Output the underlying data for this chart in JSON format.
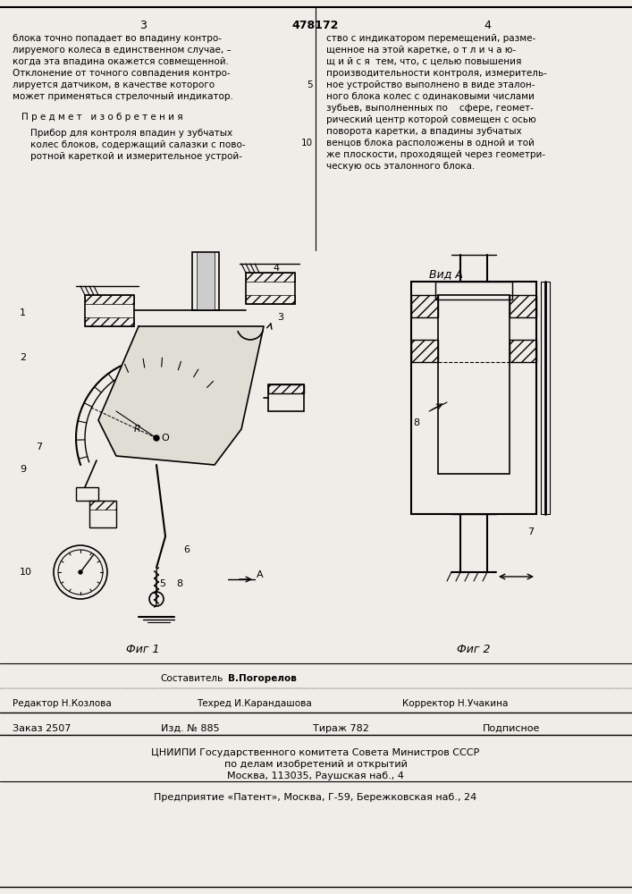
{
  "bg_color": "#f5f5f0",
  "page_color": "#f0ede8",
  "title_number": "478172",
  "page_left": "3",
  "page_right": "4",
  "fig1_label": "Фиг 1",
  "fig2_label": "Фиг 2",
  "vida_label": "Вид A",
  "text_col1_lines": [
    "блока точно попадает во впадину контро-",
    "лируемого колеса в единственном случае, –",
    "когда эта впадина окажется совмещенной.",
    "Отклонение от точного совпадения контро-",
    "лируется датчиком, в качестве которого",
    "может применяться стрелочный индикатор."
  ],
  "predmet_label": "П р е д м е т   и з о б р е т е н и я",
  "predmet_lines": [
    "Прибор для контроля впадин у зубчатых",
    "колес блоков, содержащий салазки с пово-",
    "ротной кареткой и измерительное устрой-"
  ],
  "text_col2_lines": [
    "ство с индикатором перемещений, разме-",
    "щенное на этой каретке, о т л и ч а ю-",
    "щ и й с я  тем, что, с целью повышения",
    "производительности контроля, измеритель-",
    "ное устройство выполнено в виде эталон-",
    "ного блока колес с одинаковыми числами",
    "зубьев, выполненных по    сфере, геомет-",
    "рический центр которой совмещен с осью",
    "поворота каретки, а впадины зубчатых",
    "венцов блока расположены в одной и той",
    "же плоскости, проходящей через геометри-",
    "ческую ось эталонного блока."
  ],
  "col2_line_numbers": [
    "",
    "",
    "",
    "",
    "5",
    "",
    "",
    "",
    "",
    "10",
    "",
    ""
  ],
  "sostavitel_label": "Составитель",
  "sostavitel_name": "В.Погорелов",
  "redaktor_label": "Редактор Н.Козлова",
  "tehred_label": "Техред И.Карандашова",
  "korrektor_label": "Корректор Н.Учакина",
  "zakaz_label": "Заказ 2507",
  "izd_label": "Изд. № 885",
  "tirazh_label": "Тираж 782",
  "podpisnoe_label": "Подписное",
  "cniip_line1": "ЦНИИПИ Государственного комитета Совета Министров СССР",
  "cniip_line2": "по делам изобретений и открытий",
  "cniip_line3": "Москва, 113035, Раушская наб., 4",
  "predpriyatie_line": "Предприятие «Патент», Москва, Г-59, Бережковская наб., 24"
}
